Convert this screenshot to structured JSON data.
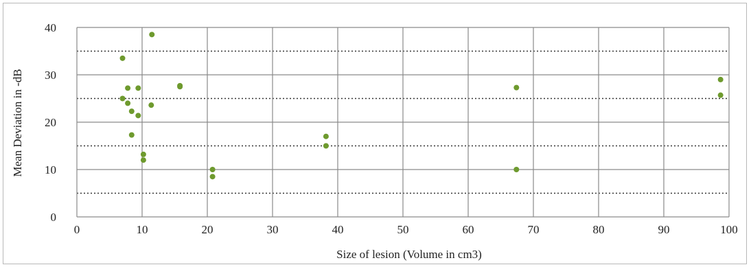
{
  "chart_data": {
    "type": "scatter",
    "title": "",
    "xlabel": "Size of lesion (Volume in cm3)",
    "ylabel": "Mean Deviation in -dB",
    "xlim": [
      0,
      100
    ],
    "ylim": [
      0,
      40
    ],
    "x_ticks": [
      0,
      10,
      20,
      30,
      40,
      50,
      60,
      70,
      80,
      90,
      100
    ],
    "y_ticks": [
      0,
      10,
      20,
      30,
      40
    ],
    "major_grid": "solid",
    "minor_grid_y": [
      5,
      15,
      25,
      35
    ],
    "minor_grid_style": "dotted",
    "point_color": "#6e9a2e",
    "series": [
      {
        "points": [
          {
            "x": 7.0,
            "y": 33.5
          },
          {
            "x": 11.5,
            "y": 38.5
          },
          {
            "x": 7.0,
            "y": 25.0
          },
          {
            "x": 7.8,
            "y": 27.2
          },
          {
            "x": 7.8,
            "y": 24.0
          },
          {
            "x": 8.4,
            "y": 22.3
          },
          {
            "x": 8.4,
            "y": 17.3
          },
          {
            "x": 9.4,
            "y": 27.2
          },
          {
            "x": 9.4,
            "y": 21.4
          },
          {
            "x": 10.2,
            "y": 13.2
          },
          {
            "x": 10.2,
            "y": 12.0
          },
          {
            "x": 11.4,
            "y": 23.6
          },
          {
            "x": 15.8,
            "y": 27.5
          },
          {
            "x": 15.8,
            "y": 27.7
          },
          {
            "x": 20.8,
            "y": 10.0
          },
          {
            "x": 20.8,
            "y": 8.5
          },
          {
            "x": 38.2,
            "y": 17.0
          },
          {
            "x": 38.2,
            "y": 15.0
          },
          {
            "x": 67.4,
            "y": 27.3
          },
          {
            "x": 67.4,
            "y": 10.0
          },
          {
            "x": 98.7,
            "y": 29.0
          },
          {
            "x": 98.7,
            "y": 25.7
          }
        ]
      }
    ]
  }
}
